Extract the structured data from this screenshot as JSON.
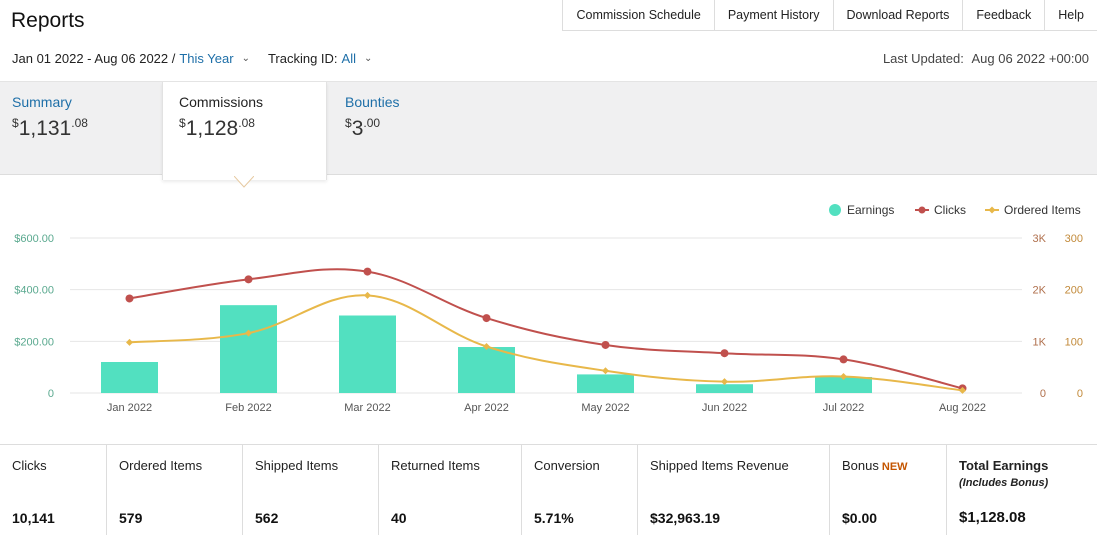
{
  "page": {
    "title": "Reports"
  },
  "top_nav": [
    "Commission Schedule",
    "Payment History",
    "Download Reports",
    "Feedback",
    "Help"
  ],
  "filters": {
    "date_range": "Jan 01 2022 - Aug 06 2022 /",
    "period": "This Year",
    "tracking_label": "Tracking ID:",
    "tracking_value": "All"
  },
  "last_updated": {
    "label": "Last Updated:",
    "value": "Aug 06 2022 +00:00"
  },
  "tabs": [
    {
      "label": "Summary",
      "currency": "$",
      "whole": "1,131",
      "cents": ".08"
    },
    {
      "label": "Commissions",
      "currency": "$",
      "whole": "1,128",
      "cents": ".08"
    },
    {
      "label": "Bounties",
      "currency": "$",
      "whole": "3",
      "cents": ".00"
    }
  ],
  "chart_data": {
    "type": "bar",
    "categories": [
      "Jan 2022",
      "Feb 2022",
      "Mar 2022",
      "Apr 2022",
      "May 2022",
      "Jun 2022",
      "Jul 2022",
      "Aug 2022"
    ],
    "series": [
      {
        "name": "Earnings",
        "kind": "bar",
        "axis": "left",
        "color": "#52e0c0",
        "values": [
          120,
          340,
          300,
          178,
          72,
          34,
          62,
          0
        ]
      },
      {
        "name": "Clicks",
        "kind": "line",
        "axis": "right-1",
        "color": "#c0504d",
        "values": [
          1830,
          2200,
          2350,
          1450,
          930,
          770,
          650,
          90
        ]
      },
      {
        "name": "Ordered Items",
        "kind": "line",
        "axis": "right-2",
        "color": "#e8b84a",
        "values": [
          98,
          116,
          189,
          90,
          43,
          22,
          32,
          5
        ]
      }
    ],
    "axes": {
      "left": {
        "ticks": [
          "0",
          "$200.00",
          "$400.00",
          "$600.00"
        ],
        "ylim": [
          0,
          600
        ]
      },
      "right_1": {
        "ticks": [
          "0",
          "1K",
          "2K",
          "3K"
        ],
        "ylim": [
          0,
          3000
        ]
      },
      "right_2": {
        "ticks": [
          "0",
          "100",
          "200",
          "300"
        ],
        "ylim": [
          0,
          300
        ]
      }
    },
    "legend_position": "top-right",
    "grid": true
  },
  "stats": [
    {
      "label": "Clicks",
      "value": "10,141"
    },
    {
      "label": "Ordered Items",
      "value": "579"
    },
    {
      "label": "Shipped Items",
      "value": "562"
    },
    {
      "label": "Returned Items",
      "value": "40"
    },
    {
      "label": "Conversion",
      "value": "5.71%"
    },
    {
      "label": "Shipped Items Revenue",
      "value": "$32,963.19"
    },
    {
      "label": "Bonus",
      "badge": "NEW",
      "value": "$0.00"
    },
    {
      "label": "Total Earnings",
      "sub": "(Includes Bonus)",
      "value": "$1,128.08"
    }
  ],
  "colors": {
    "link": "#1e6fa8",
    "earnings": "#52e0c0",
    "clicks": "#c0504d",
    "ordered": "#e8b84a"
  }
}
